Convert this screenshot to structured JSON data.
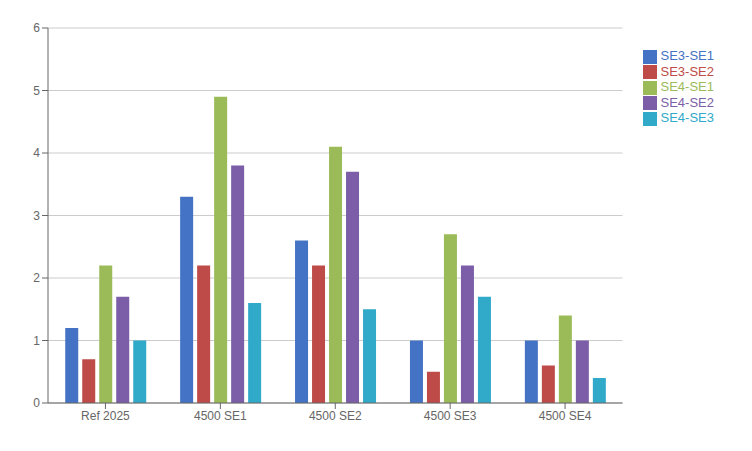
{
  "chart_data": {
    "type": "bar",
    "categories": [
      "Ref 2025",
      "4500 SE1",
      "4500 SE2",
      "4500 SE3",
      "4500 SE4"
    ],
    "series": [
      {
        "name": "SE3-SE1",
        "color": "#4472C4",
        "values": [
          1.2,
          3.3,
          2.6,
          1.0,
          1.0
        ]
      },
      {
        "name": "SE3-SE2",
        "color": "#BE4B48",
        "values": [
          0.7,
          2.2,
          2.2,
          0.5,
          0.6
        ]
      },
      {
        "name": "SE4-SE1",
        "color": "#9BBB59",
        "values": [
          2.2,
          4.9,
          4.1,
          2.7,
          1.4
        ]
      },
      {
        "name": "SE4-SE2",
        "color": "#7B5EA7",
        "values": [
          1.7,
          3.8,
          3.7,
          2.2,
          1.0
        ]
      },
      {
        "name": "SE4-SE3",
        "color": "#31A9C9",
        "values": [
          1.0,
          1.6,
          1.5,
          1.7,
          0.4
        ]
      }
    ],
    "ylim": [
      0,
      6
    ],
    "yticks": [
      0,
      1,
      2,
      3,
      4,
      5,
      6
    ],
    "grid": true,
    "legend": "right"
  }
}
